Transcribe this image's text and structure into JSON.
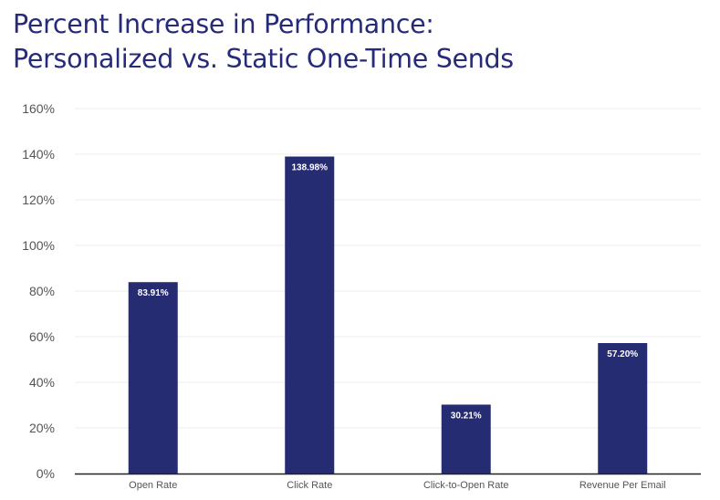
{
  "colors": {
    "title": "#252b7a",
    "bar": "#262c72",
    "grid": "#ececec",
    "axis": "#222222"
  },
  "chart_data": {
    "type": "bar",
    "title_lines": [
      "Percent Increase in Performance:",
      "Personalized vs. Static One-Time Sends"
    ],
    "categories": [
      "Open Rate",
      "Click Rate",
      "Click-to-Open Rate",
      "Revenue Per Email"
    ],
    "values": [
      83.91,
      138.98,
      30.21,
      57.2
    ],
    "value_labels": [
      "83.91%",
      "138.98%",
      "30.21%",
      "57.20%"
    ],
    "xlabel": "",
    "ylabel": "",
    "ylim": [
      0,
      160
    ],
    "yticks": [
      0,
      20,
      40,
      60,
      80,
      100,
      120,
      140,
      160
    ],
    "ytick_labels": [
      "0%",
      "20%",
      "40%",
      "60%",
      "80%",
      "100%",
      "120%",
      "140%",
      "160%"
    ],
    "grid": true,
    "legend": "none"
  }
}
